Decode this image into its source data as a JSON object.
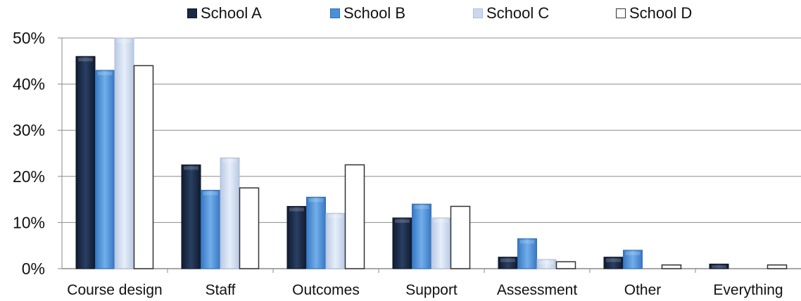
{
  "chart_data": {
    "type": "bar",
    "title": "",
    "xlabel": "",
    "ylabel": "",
    "categories": [
      "Course design",
      "Staff",
      "Outcomes",
      "Support",
      "Assessment",
      "Other",
      "Everything"
    ],
    "yticks": [
      "0%",
      "10%",
      "20%",
      "30%",
      "40%",
      "50%"
    ],
    "ylim": [
      0,
      50
    ],
    "unit": "%",
    "grid": true,
    "legend_position": "top",
    "series": [
      {
        "name": "School A",
        "values": [
          46,
          22.5,
          13.5,
          11,
          2.5,
          2.5,
          1
        ],
        "color": "#1a2a45"
      },
      {
        "name": "School B",
        "values": [
          43,
          17,
          15.5,
          14,
          6.5,
          4,
          0
        ],
        "color": "#4a8fd8"
      },
      {
        "name": "School C",
        "values": [
          50,
          24,
          12,
          11,
          2,
          0,
          0
        ],
        "color": "#cbd8ee"
      },
      {
        "name": "School D",
        "values": [
          44,
          17.5,
          22.5,
          13.5,
          1.5,
          0.8,
          0.8
        ],
        "color": "#ffffff"
      }
    ]
  }
}
